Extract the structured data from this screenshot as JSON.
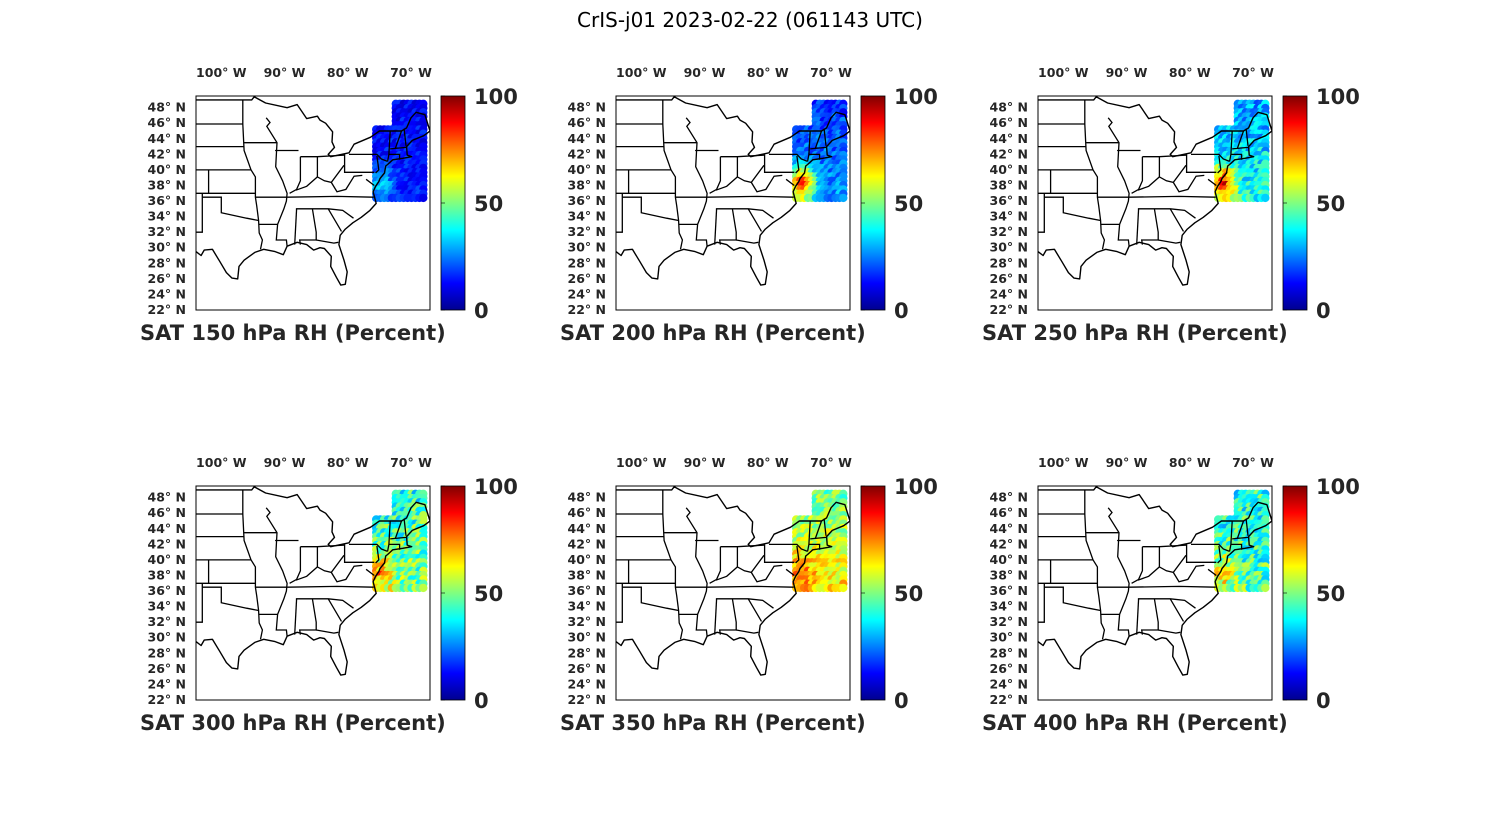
{
  "figure_title": "CrIS-j01 2023-02-22 (061143 UTC)",
  "colormap": [
    "#00008f",
    "#0000ff",
    "#0080ff",
    "#00ffff",
    "#80ff80",
    "#ffff00",
    "#ff8000",
    "#ff0000",
    "#800000"
  ],
  "chart_data": [
    {
      "type": "map-scatter",
      "title": "SAT 150 hPa RH (Percent)",
      "lon_ticks": [
        100,
        90,
        80,
        70
      ],
      "lon_tick_labels": [
        "100° W",
        "90° W",
        "80° W",
        "70° W"
      ],
      "lat_ticks": [
        48,
        46,
        44,
        42,
        40,
        38,
        36,
        34,
        32,
        30,
        28,
        26,
        24,
        22
      ],
      "lat_tick_labels": [
        "48° N",
        "46° N",
        "44° N",
        "42° N",
        "40° N",
        "38° N",
        "36° N",
        "34° N",
        "32° N",
        "30° N",
        "28° N",
        "26° N",
        "24° N",
        "22° N"
      ],
      "xlim": [
        -104,
        -67
      ],
      "ylim": [
        22,
        49.5
      ],
      "colorbar": {
        "range": [
          0,
          100
        ],
        "tick_labels": [
          "0",
          "50",
          "100"
        ]
      },
      "swath": {
        "lon": [
          -75.5,
          -67.5
        ],
        "lat": [
          36,
          48.5
        ]
      },
      "field": {
        "base": 12,
        "south_east": 4,
        "coast_hot": 20,
        "noise": 6
      }
    },
    {
      "type": "map-scatter",
      "title": "SAT 200 hPa RH (Percent)",
      "lon_ticks": [
        100,
        90,
        80,
        70
      ],
      "lon_tick_labels": [
        "100° W",
        "90° W",
        "80° W",
        "70° W"
      ],
      "lat_ticks": [
        48,
        46,
        44,
        42,
        40,
        38,
        36,
        34,
        32,
        30,
        28,
        26,
        24,
        22
      ],
      "lat_tick_labels": [
        "48° N",
        "46° N",
        "44° N",
        "42° N",
        "40° N",
        "38° N",
        "36° N",
        "34° N",
        "32° N",
        "30° N",
        "28° N",
        "26° N",
        "24° N",
        "22° N"
      ],
      "xlim": [
        -104,
        -67
      ],
      "ylim": [
        22,
        49.5
      ],
      "colorbar": {
        "range": [
          0,
          100
        ],
        "tick_labels": [
          "0",
          "50",
          "100"
        ]
      },
      "swath": {
        "lon": [
          -75.5,
          -67.5
        ],
        "lat": [
          36,
          48.5
        ]
      },
      "field": {
        "base": 18,
        "south_east": 10,
        "coast_hot": 70,
        "noise": 8
      }
    },
    {
      "type": "map-scatter",
      "title": "SAT 250 hPa RH (Percent)",
      "lon_ticks": [
        100,
        90,
        80,
        70
      ],
      "lon_tick_labels": [
        "100° W",
        "90° W",
        "80° W",
        "70° W"
      ],
      "lat_ticks": [
        48,
        46,
        44,
        42,
        40,
        38,
        36,
        34,
        32,
        30,
        28,
        26,
        24,
        22
      ],
      "lat_tick_labels": [
        "48° N",
        "46° N",
        "44° N",
        "42° N",
        "40° N",
        "38° N",
        "36° N",
        "34° N",
        "32° N",
        "30° N",
        "28° N",
        "26° N",
        "24° N",
        "22° N"
      ],
      "xlim": [
        -104,
        -67
      ],
      "ylim": [
        22,
        49.5
      ],
      "colorbar": {
        "range": [
          0,
          100
        ],
        "tick_labels": [
          "0",
          "50",
          "100"
        ]
      },
      "swath": {
        "lon": [
          -75.5,
          -67.5
        ],
        "lat": [
          36,
          48.5
        ]
      },
      "field": {
        "base": 28,
        "south_east": 12,
        "coast_hot": 55,
        "noise": 10
      }
    },
    {
      "type": "map-scatter",
      "title": "SAT 300 hPa RH (Percent)",
      "lon_ticks": [
        100,
        90,
        80,
        70
      ],
      "lon_tick_labels": [
        "100° W",
        "90° W",
        "80° W",
        "70° W"
      ],
      "lat_ticks": [
        48,
        46,
        44,
        42,
        40,
        38,
        36,
        34,
        32,
        30,
        28,
        26,
        24,
        22
      ],
      "lat_tick_labels": [
        "48° N",
        "46° N",
        "44° N",
        "42° N",
        "40° N",
        "38° N",
        "36° N",
        "34° N",
        "32° N",
        "30° N",
        "28° N",
        "26° N",
        "24° N",
        "22° N"
      ],
      "xlim": [
        -104,
        -67
      ],
      "ylim": [
        22,
        49.5
      ],
      "colorbar": {
        "range": [
          0,
          100
        ],
        "tick_labels": [
          "0",
          "50",
          "100"
        ]
      },
      "swath": {
        "lon": [
          -75.5,
          -67.5
        ],
        "lat": [
          36,
          48.5
        ]
      },
      "field": {
        "base": 42,
        "south_east": 8,
        "coast_hot": 30,
        "noise": 14
      }
    },
    {
      "type": "map-scatter",
      "title": "SAT 350 hPa RH (Percent)",
      "lon_ticks": [
        100,
        90,
        80,
        70
      ],
      "lon_tick_labels": [
        "100° W",
        "90° W",
        "80° W",
        "70° W"
      ],
      "lat_ticks": [
        48,
        46,
        44,
        42,
        40,
        38,
        36,
        34,
        32,
        30,
        28,
        26,
        24,
        22
      ],
      "lat_tick_labels": [
        "48° N",
        "46° N",
        "44° N",
        "42° N",
        "40° N",
        "38° N",
        "36° N",
        "34° N",
        "32° N",
        "30° N",
        "28° N",
        "26° N",
        "24° N",
        "22° N"
      ],
      "xlim": [
        -104,
        -67
      ],
      "ylim": [
        22,
        49.5
      ],
      "colorbar": {
        "range": [
          0,
          100
        ],
        "tick_labels": [
          "0",
          "50",
          "100"
        ]
      },
      "swath": {
        "lon": [
          -75.5,
          -67.5
        ],
        "lat": [
          36,
          48.5
        ]
      },
      "field": {
        "base": 48,
        "south_east": 18,
        "coast_hot": 20,
        "noise": 10
      }
    },
    {
      "type": "map-scatter",
      "title": "SAT 400 hPa RH (Percent)",
      "lon_ticks": [
        100,
        90,
        80,
        70
      ],
      "lon_tick_labels": [
        "100° W",
        "90° W",
        "80° W",
        "70° W"
      ],
      "lat_ticks": [
        48,
        46,
        44,
        42,
        40,
        38,
        36,
        34,
        32,
        30,
        28,
        26,
        24,
        22
      ],
      "lat_tick_labels": [
        "48° N",
        "46° N",
        "44° N",
        "42° N",
        "40° N",
        "38° N",
        "36° N",
        "34° N",
        "32° N",
        "30° N",
        "28° N",
        "26° N",
        "24° N",
        "22° N"
      ],
      "xlim": [
        -104,
        -67
      ],
      "ylim": [
        22,
        49.5
      ],
      "colorbar": {
        "range": [
          0,
          100
        ],
        "tick_labels": [
          "0",
          "50",
          "100"
        ]
      },
      "swath": {
        "lon": [
          -75.5,
          -67.5
        ],
        "lat": [
          36,
          48.5
        ]
      },
      "field": {
        "base": 40,
        "south_east": 6,
        "coast_hot": 22,
        "noise": 14
      }
    }
  ]
}
